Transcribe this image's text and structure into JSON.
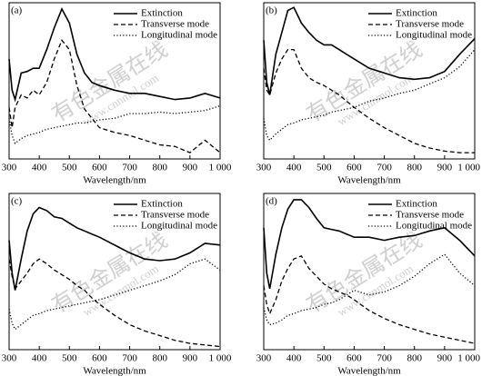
{
  "chart_data": [
    {
      "type": "line",
      "label": "(a)",
      "x_label": "Wavelength/nm",
      "legend": "upper right",
      "x": [
        300,
        310,
        320,
        340,
        360,
        380,
        400,
        425,
        450,
        475,
        500,
        525,
        550,
        575,
        600,
        650,
        700,
        750,
        800,
        850,
        900,
        950,
        1000
      ],
      "xlim": [
        300,
        1000
      ],
      "ylim": [
        0,
        1
      ],
      "xticks": [
        300,
        400,
        500,
        600,
        700,
        800,
        900,
        {
          "value": 1000,
          "label": "1 000"
        }
      ],
      "series": [
        {
          "name": "Extinction",
          "color": "#000000",
          "style": "solid",
          "values": [
            0.64,
            0.44,
            0.38,
            0.55,
            0.56,
            0.58,
            0.58,
            0.7,
            0.84,
            0.96,
            0.87,
            0.67,
            0.55,
            0.49,
            0.47,
            0.44,
            0.42,
            0.42,
            0.4,
            0.38,
            0.39,
            0.42,
            0.39
          ]
        },
        {
          "name": "Transverse mode",
          "color": "#000000",
          "style": "dashed",
          "values": [
            0.33,
            0.2,
            0.33,
            0.41,
            0.39,
            0.44,
            0.41,
            0.49,
            0.64,
            0.76,
            0.7,
            0.47,
            0.32,
            0.26,
            0.2,
            0.17,
            0.15,
            0.12,
            0.09,
            0.08,
            0.04,
            0.12,
            0.04
          ]
        },
        {
          "name": "Longitudinal mode",
          "color": "#000000",
          "style": "dotted",
          "values": [
            0.26,
            0.15,
            0.1,
            0.13,
            0.15,
            0.16,
            0.17,
            0.19,
            0.2,
            0.21,
            0.22,
            0.23,
            0.23,
            0.24,
            0.25,
            0.26,
            0.29,
            0.29,
            0.3,
            0.29,
            0.3,
            0.31,
            0.34
          ]
        }
      ]
    },
    {
      "type": "line",
      "label": "(b)",
      "x_label": "Wavelength/nm",
      "legend": "upper right",
      "x": [
        300,
        310,
        320,
        340,
        360,
        380,
        400,
        425,
        450,
        475,
        500,
        525,
        550,
        575,
        600,
        650,
        700,
        750,
        800,
        850,
        900,
        950,
        1000
      ],
      "xlim": [
        300,
        1000
      ],
      "ylim": [
        0,
        1
      ],
      "xticks": [
        300,
        400,
        500,
        600,
        700,
        800,
        900,
        {
          "value": 1000,
          "label": "1 000"
        }
      ],
      "series": [
        {
          "name": "Extinction",
          "color": "#000000",
          "style": "solid",
          "values": [
            0.76,
            0.49,
            0.41,
            0.67,
            0.81,
            0.95,
            0.97,
            0.87,
            0.81,
            0.76,
            0.73,
            0.73,
            0.7,
            0.67,
            0.64,
            0.58,
            0.55,
            0.52,
            0.51,
            0.52,
            0.56,
            0.67,
            0.77
          ]
        },
        {
          "name": "Transverse mode",
          "color": "#000000",
          "style": "dashed",
          "values": [
            0.58,
            0.44,
            0.41,
            0.55,
            0.64,
            0.7,
            0.7,
            0.58,
            0.52,
            0.49,
            0.47,
            0.44,
            0.41,
            0.37,
            0.33,
            0.26,
            0.2,
            0.15,
            0.1,
            0.07,
            0.05,
            0.04,
            0.04
          ]
        },
        {
          "name": "Longitudinal mode",
          "color": "#000000",
          "style": "dotted",
          "values": [
            0.26,
            0.15,
            0.12,
            0.16,
            0.19,
            0.22,
            0.23,
            0.25,
            0.26,
            0.27,
            0.28,
            0.3,
            0.31,
            0.32,
            0.33,
            0.37,
            0.39,
            0.42,
            0.44,
            0.48,
            0.52,
            0.59,
            0.7
          ]
        }
      ]
    },
    {
      "type": "line",
      "label": "(c)",
      "x_label": "Wavelength/nm",
      "legend": "upper right",
      "x": [
        300,
        310,
        320,
        340,
        360,
        380,
        400,
        425,
        450,
        475,
        500,
        525,
        550,
        575,
        600,
        650,
        700,
        750,
        800,
        850,
        900,
        950,
        1000
      ],
      "xlim": [
        300,
        1000
      ],
      "ylim": [
        0,
        1
      ],
      "xticks": [
        300,
        400,
        500,
        600,
        700,
        800,
        900,
        {
          "value": 1000,
          "label": "1 000"
        }
      ],
      "series": [
        {
          "name": "Extinction",
          "color": "#000000",
          "style": "solid",
          "values": [
            0.7,
            0.49,
            0.38,
            0.58,
            0.76,
            0.87,
            0.91,
            0.89,
            0.85,
            0.84,
            0.81,
            0.78,
            0.76,
            0.74,
            0.72,
            0.67,
            0.62,
            0.58,
            0.57,
            0.58,
            0.62,
            0.68,
            0.67
          ]
        },
        {
          "name": "Transverse mode",
          "color": "#000000",
          "style": "dashed",
          "values": [
            0.58,
            0.47,
            0.39,
            0.44,
            0.49,
            0.55,
            0.58,
            0.55,
            0.51,
            0.48,
            0.45,
            0.41,
            0.38,
            0.33,
            0.29,
            0.22,
            0.16,
            0.12,
            0.09,
            0.06,
            0.04,
            0.03,
            0.02
          ]
        },
        {
          "name": "Longitudinal mode",
          "color": "#000000",
          "style": "dotted",
          "values": [
            0.26,
            0.17,
            0.13,
            0.16,
            0.19,
            0.22,
            0.23,
            0.25,
            0.26,
            0.27,
            0.28,
            0.29,
            0.3,
            0.31,
            0.32,
            0.35,
            0.38,
            0.41,
            0.44,
            0.48,
            0.55,
            0.58,
            0.51
          ]
        }
      ]
    },
    {
      "type": "line",
      "label": "(d)",
      "x_label": "Wavelength/nm",
      "legend": "upper right",
      "x": [
        300,
        310,
        320,
        340,
        360,
        380,
        400,
        425,
        450,
        475,
        500,
        525,
        550,
        575,
        600,
        650,
        700,
        750,
        800,
        850,
        900,
        950,
        1000
      ],
      "xlim": [
        300,
        1000
      ],
      "ylim": [
        0,
        1
      ],
      "xticks": [
        300,
        400,
        500,
        600,
        700,
        800,
        900,
        {
          "value": 1000,
          "label": "1 000"
        }
      ],
      "series": [
        {
          "name": "Extinction",
          "color": "#000000",
          "style": "solid",
          "values": [
            0.78,
            0.49,
            0.39,
            0.61,
            0.78,
            0.9,
            0.96,
            0.96,
            0.91,
            0.84,
            0.78,
            0.77,
            0.76,
            0.74,
            0.72,
            0.72,
            0.7,
            0.72,
            0.73,
            0.76,
            0.78,
            0.7,
            0.6
          ]
        },
        {
          "name": "Transverse mode",
          "color": "#000000",
          "style": "dashed",
          "values": [
            0.41,
            0.29,
            0.23,
            0.32,
            0.44,
            0.52,
            0.58,
            0.6,
            0.52,
            0.47,
            0.42,
            0.39,
            0.37,
            0.35,
            0.32,
            0.25,
            0.2,
            0.16,
            0.13,
            0.1,
            0.08,
            0.06,
            0.04
          ]
        },
        {
          "name": "Longitudinal mode",
          "color": "#000000",
          "style": "dotted",
          "values": [
            0.27,
            0.19,
            0.16,
            0.17,
            0.19,
            0.22,
            0.23,
            0.25,
            0.26,
            0.27,
            0.29,
            0.3,
            0.32,
            0.35,
            0.38,
            0.35,
            0.37,
            0.41,
            0.47,
            0.55,
            0.61,
            0.49,
            0.41
          ]
        }
      ]
    }
  ],
  "watermark": {
    "text": "有色金属在线",
    "url": "www.cnnmol.com"
  }
}
